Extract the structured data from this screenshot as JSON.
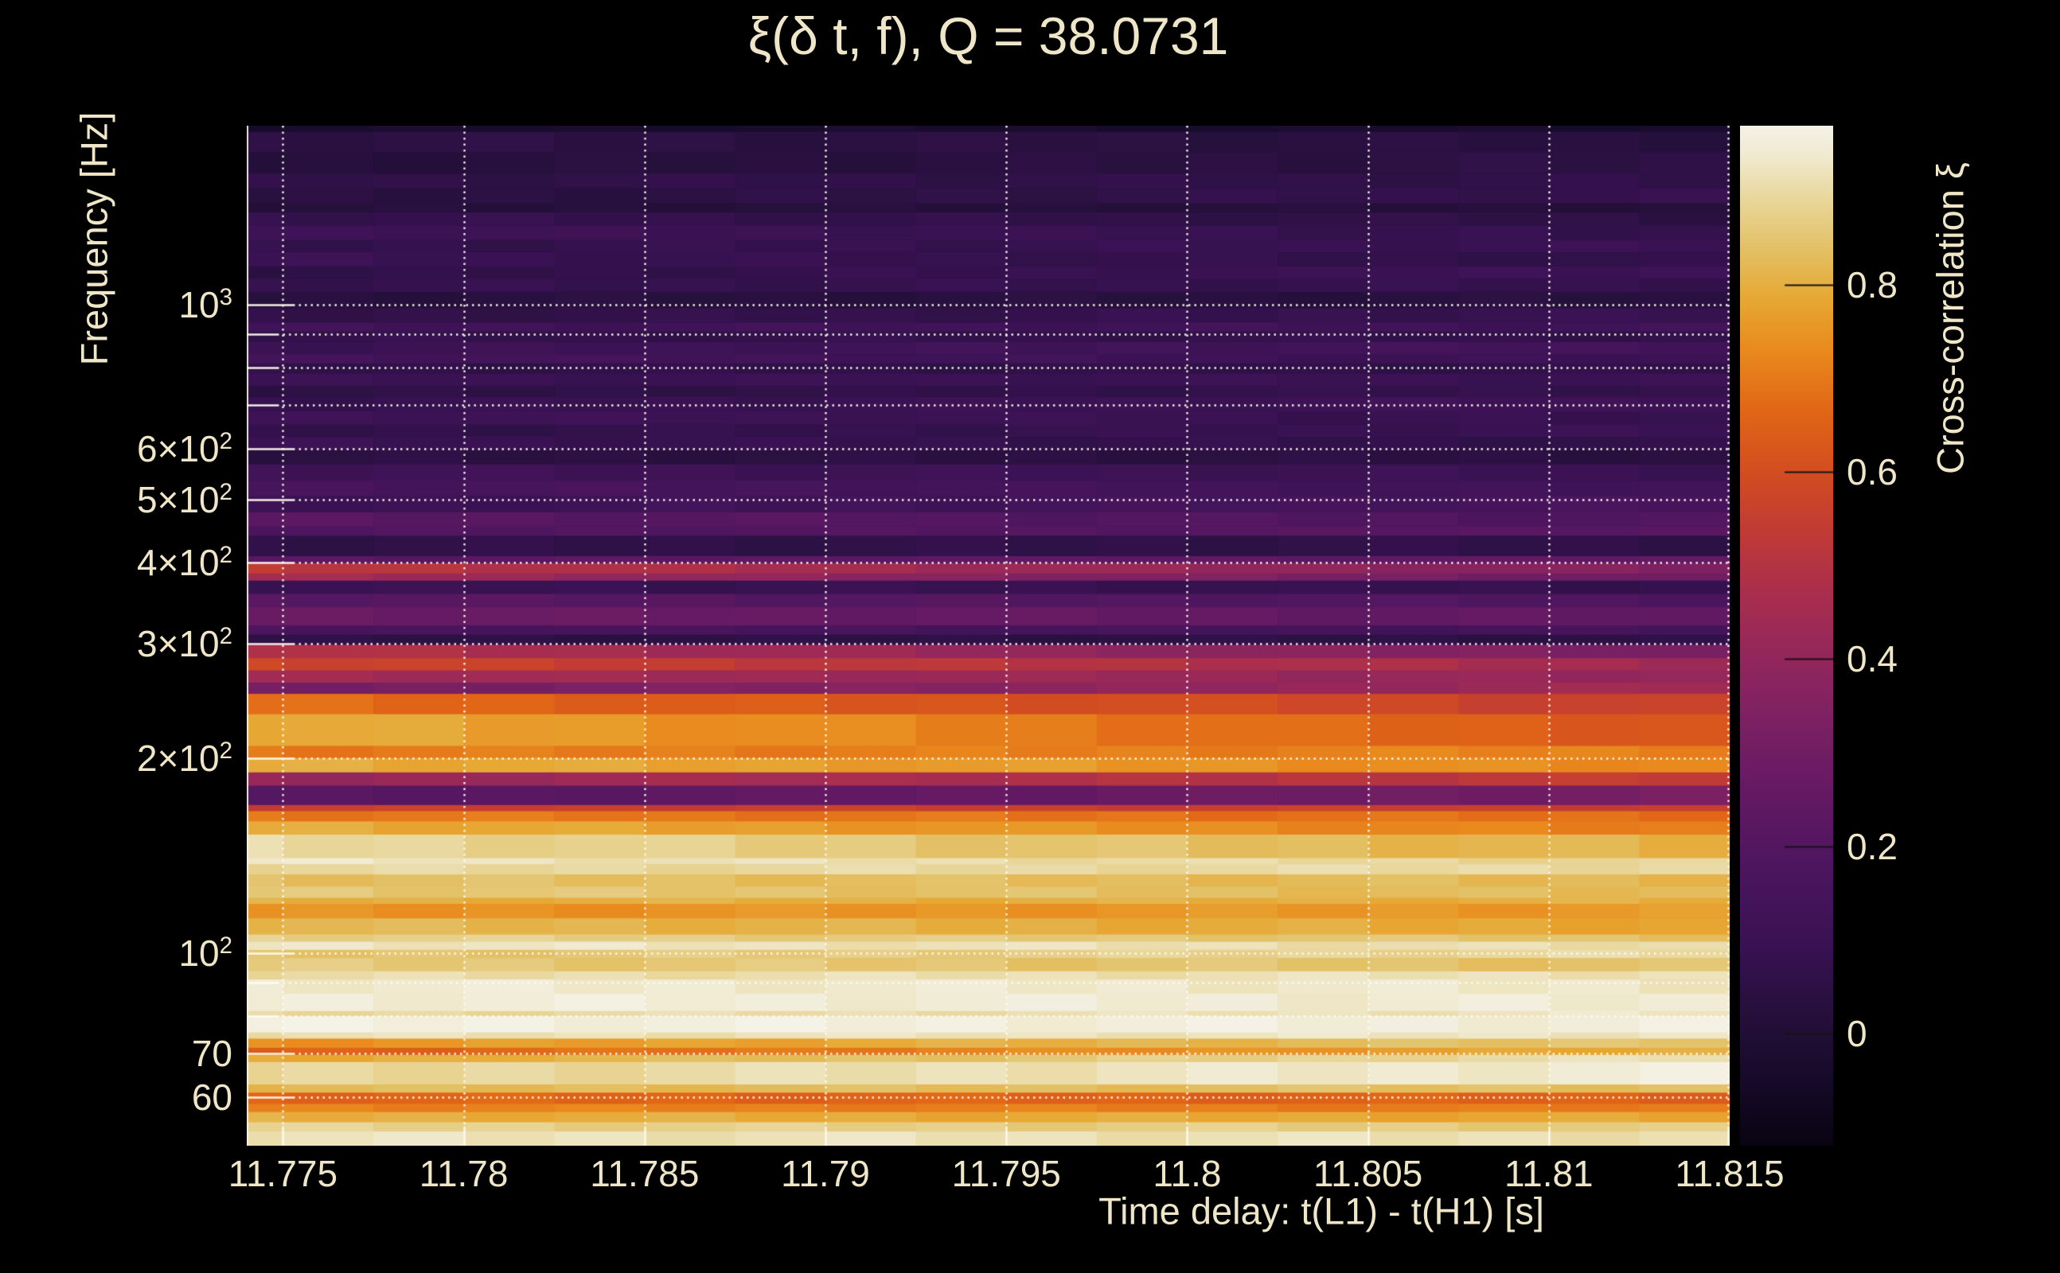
{
  "page": {
    "background": "#000000",
    "text_color": "#efe6c8",
    "grid_color": "rgba(255,252,240,0.95)",
    "axis_spine_color": "rgba(250,246,232,0.9)",
    "colorbar_tick_color": "#141414"
  },
  "chart_data": {
    "type": "heatmap",
    "title": "ξ(δ t, f), Q = 38.0731",
    "xlabel": "Time delay: t(L1) - t(H1) [s]",
    "ylabel": "Frequency [Hz]",
    "colorbar_label": "Cross-correlation ξ",
    "x_range": [
      11.774,
      11.815
    ],
    "x_ticks": [
      {
        "value": 11.775,
        "label": "11.775"
      },
      {
        "value": 11.78,
        "label": "11.78"
      },
      {
        "value": 11.785,
        "label": "11.785"
      },
      {
        "value": 11.79,
        "label": "11.79"
      },
      {
        "value": 11.795,
        "label": "11.795"
      },
      {
        "value": 11.8,
        "label": "11.8"
      },
      {
        "value": 11.805,
        "label": "11.805"
      },
      {
        "value": 11.81,
        "label": "11.81"
      },
      {
        "value": 11.815,
        "label": "11.815"
      }
    ],
    "y_scale": "log",
    "y_range_hz": [
      50.5,
      1920
    ],
    "y_ticks": [
      {
        "hz": 1000,
        "base": "10",
        "exp": "3",
        "major": true
      },
      {
        "hz": 900,
        "base": "",
        "exp": "",
        "major": false
      },
      {
        "hz": 800,
        "base": "",
        "exp": "",
        "major": false
      },
      {
        "hz": 700,
        "base": "",
        "exp": "",
        "major": false
      },
      {
        "hz": 600,
        "base": "6×10",
        "exp": "2",
        "major": true
      },
      {
        "hz": 500,
        "base": "5×10",
        "exp": "2",
        "major": true
      },
      {
        "hz": 400,
        "base": "4×10",
        "exp": "2",
        "major": true
      },
      {
        "hz": 300,
        "base": "3×10",
        "exp": "2",
        "major": true
      },
      {
        "hz": 200,
        "base": "2×10",
        "exp": "2",
        "major": true
      },
      {
        "hz": 100,
        "base": "10",
        "exp": "2",
        "major": true
      },
      {
        "hz": 90,
        "base": "",
        "exp": "",
        "major": false
      },
      {
        "hz": 80,
        "base": "",
        "exp": "",
        "major": false
      },
      {
        "hz": 70,
        "base": "70",
        "exp": "",
        "major": true
      },
      {
        "hz": 60,
        "base": "60",
        "exp": "",
        "major": true
      }
    ],
    "color_range": [
      -0.12,
      0.97
    ],
    "colorbar_ticks": [
      {
        "value": 0.8,
        "label": "0.8"
      },
      {
        "value": 0.6,
        "label": "0.6"
      },
      {
        "value": 0.4,
        "label": "0.4"
      },
      {
        "value": 0.2,
        "label": "0.2"
      },
      {
        "value": 0.0,
        "label": "0"
      }
    ],
    "colormap_stops": [
      [
        0.0,
        "#0a0412"
      ],
      [
        0.06,
        "#150a28"
      ],
      [
        0.13,
        "#26103c"
      ],
      [
        0.2,
        "#3a1254"
      ],
      [
        0.28,
        "#4f1660"
      ],
      [
        0.35,
        "#651a63"
      ],
      [
        0.42,
        "#7d2163"
      ],
      [
        0.48,
        "#93275c"
      ],
      [
        0.54,
        "#a92e4e"
      ],
      [
        0.6,
        "#c03a37"
      ],
      [
        0.66,
        "#d34d21"
      ],
      [
        0.72,
        "#e16616"
      ],
      [
        0.78,
        "#e98a1e"
      ],
      [
        0.83,
        "#e7a833"
      ],
      [
        0.88,
        "#e3c166"
      ],
      [
        0.93,
        "#e9d89e"
      ],
      [
        0.97,
        "#f0ead0"
      ],
      [
        1.0,
        "#f5f2e8"
      ]
    ],
    "time_columns": 17,
    "bands": [
      [
        0.0,
        -0.03,
        -0.03
      ],
      [
        0.006,
        0.05,
        0.03
      ],
      [
        0.026,
        0.02,
        0.05
      ],
      [
        0.047,
        0.06,
        0.06
      ],
      [
        0.061,
        0.03,
        0.08
      ],
      [
        0.076,
        0.02,
        0.02
      ],
      [
        0.085,
        0.08,
        0.05
      ],
      [
        0.098,
        0.12,
        0.07
      ],
      [
        0.112,
        0.07,
        0.1
      ],
      [
        0.124,
        0.1,
        0.06
      ],
      [
        0.138,
        0.05,
        0.12
      ],
      [
        0.15,
        0.08,
        0.08
      ],
      [
        0.163,
        0.03,
        0.03
      ],
      [
        0.179,
        0.06,
        0.09
      ],
      [
        0.193,
        0.12,
        0.12
      ],
      [
        0.202,
        0.07,
        0.07
      ],
      [
        0.212,
        0.1,
        0.14
      ],
      [
        0.224,
        0.14,
        0.1
      ],
      [
        0.233,
        0.06,
        0.06
      ],
      [
        0.243,
        0.1,
        0.1
      ],
      [
        0.255,
        0.05,
        0.08
      ],
      [
        0.266,
        0.08,
        0.12
      ],
      [
        0.28,
        0.12,
        0.08
      ],
      [
        0.293,
        0.06,
        0.1
      ],
      [
        0.305,
        0.1,
        0.06
      ],
      [
        0.318,
        0.04,
        0.04
      ],
      [
        0.332,
        0.12,
        0.1
      ],
      [
        0.348,
        0.16,
        0.12
      ],
      [
        0.363,
        0.1,
        0.16
      ],
      [
        0.379,
        0.22,
        0.18
      ],
      [
        0.393,
        0.18,
        0.22
      ],
      [
        0.402,
        0.06,
        0.06
      ],
      [
        0.422,
        0.22,
        0.25
      ],
      [
        0.429,
        0.53,
        0.34
      ],
      [
        0.439,
        0.45,
        0.28
      ],
      [
        0.446,
        0.1,
        0.08
      ],
      [
        0.459,
        0.22,
        0.18
      ],
      [
        0.472,
        0.28,
        0.24
      ],
      [
        0.49,
        0.16,
        0.14
      ],
      [
        0.499,
        0.05,
        0.05
      ],
      [
        0.509,
        0.5,
        0.32
      ],
      [
        0.522,
        0.58,
        0.44
      ],
      [
        0.534,
        0.45,
        0.4
      ],
      [
        0.546,
        0.3,
        0.45
      ],
      [
        0.557,
        0.68,
        0.55
      ],
      [
        0.577,
        0.8,
        0.62
      ],
      [
        0.608,
        0.7,
        0.72
      ],
      [
        0.62,
        0.8,
        0.72
      ],
      [
        0.634,
        0.4,
        0.55
      ],
      [
        0.647,
        0.2,
        0.32
      ],
      [
        0.666,
        0.55,
        0.55
      ],
      [
        0.672,
        0.7,
        0.68
      ],
      [
        0.682,
        0.8,
        0.7
      ],
      [
        0.695,
        0.9,
        0.8
      ],
      [
        0.718,
        0.93,
        0.88
      ],
      [
        0.724,
        0.89,
        0.9
      ],
      [
        0.734,
        0.84,
        0.82
      ],
      [
        0.746,
        0.86,
        0.82
      ],
      [
        0.757,
        0.8,
        0.8
      ],
      [
        0.763,
        0.74,
        0.76
      ],
      [
        0.777,
        0.82,
        0.78
      ],
      [
        0.793,
        0.88,
        0.84
      ],
      [
        0.8,
        0.93,
        0.9
      ],
      [
        0.808,
        0.84,
        0.9
      ],
      [
        0.816,
        0.86,
        0.84
      ],
      [
        0.829,
        0.9,
        0.92
      ],
      [
        0.837,
        0.94,
        0.93
      ],
      [
        0.851,
        0.95,
        0.94
      ],
      [
        0.868,
        0.89,
        0.93
      ],
      [
        0.873,
        0.96,
        0.95
      ],
      [
        0.889,
        0.91,
        0.93
      ],
      [
        0.895,
        0.74,
        0.86
      ],
      [
        0.904,
        0.64,
        0.8
      ],
      [
        0.911,
        0.78,
        0.92
      ],
      [
        0.918,
        0.88,
        0.95
      ],
      [
        0.94,
        0.82,
        0.84
      ],
      [
        0.948,
        0.66,
        0.65
      ],
      [
        0.959,
        0.72,
        0.7
      ],
      [
        0.967,
        0.8,
        0.78
      ],
      [
        0.977,
        0.88,
        0.86
      ],
      [
        0.986,
        0.92,
        0.91
      ]
    ]
  }
}
